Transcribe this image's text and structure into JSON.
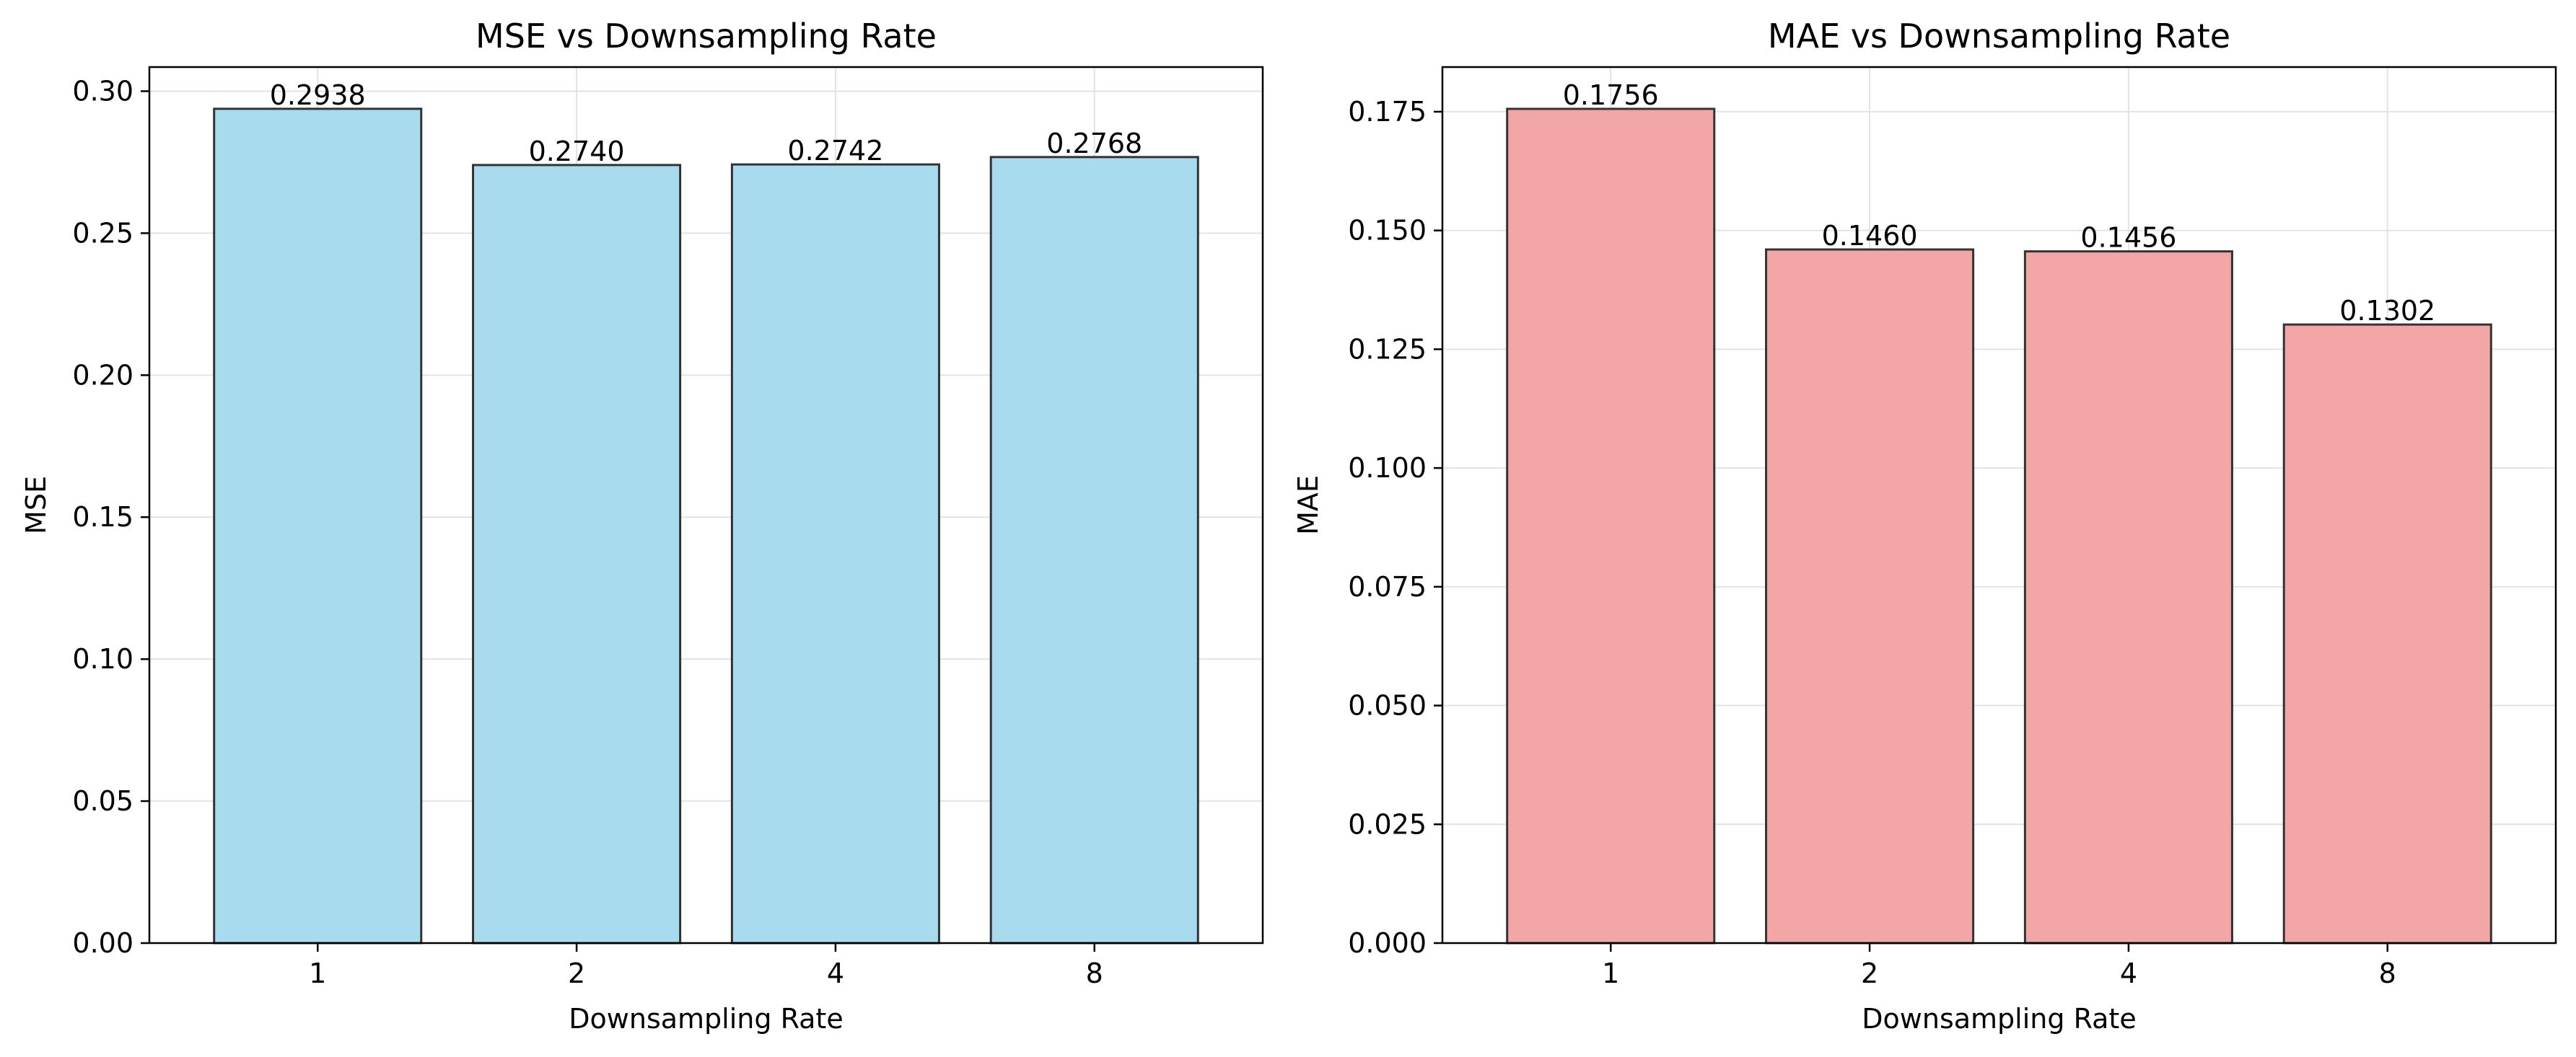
{
  "chart_data": [
    {
      "type": "bar",
      "title": "MSE vs Downsampling Rate",
      "xlabel": "Downsampling Rate",
      "ylabel": "MSE",
      "categories": [
        "1",
        "2",
        "4",
        "8"
      ],
      "values": [
        0.2938,
        0.274,
        0.2742,
        0.2768
      ],
      "value_labels": [
        "0.2938",
        "0.2740",
        "0.2742",
        "0.2768"
      ],
      "ylim": [
        0,
        0.3085
      ],
      "yticks": [
        0.0,
        0.05,
        0.1,
        0.15,
        0.2,
        0.25,
        0.3
      ],
      "ytick_labels": [
        "0.00",
        "0.05",
        "0.10",
        "0.15",
        "0.20",
        "0.25",
        "0.30"
      ],
      "grid": true,
      "bar_color": "#a8dbee",
      "edge_color": "#333333"
    },
    {
      "type": "bar",
      "title": "MAE vs Downsampling Rate",
      "xlabel": "Downsampling Rate",
      "ylabel": "MAE",
      "categories": [
        "1",
        "2",
        "4",
        "8"
      ],
      "values": [
        0.1756,
        0.146,
        0.1456,
        0.1302
      ],
      "value_labels": [
        "0.1756",
        "0.1460",
        "0.1456",
        "0.1302"
      ],
      "ylim": [
        0,
        0.1844
      ],
      "yticks": [
        0.0,
        0.025,
        0.05,
        0.075,
        0.1,
        0.125,
        0.15,
        0.175
      ],
      "ytick_labels": [
        "0.000",
        "0.025",
        "0.050",
        "0.075",
        "0.100",
        "0.125",
        "0.150",
        "0.175"
      ],
      "grid": true,
      "bar_color": "#f3a6a6",
      "edge_color": "#333333"
    }
  ]
}
